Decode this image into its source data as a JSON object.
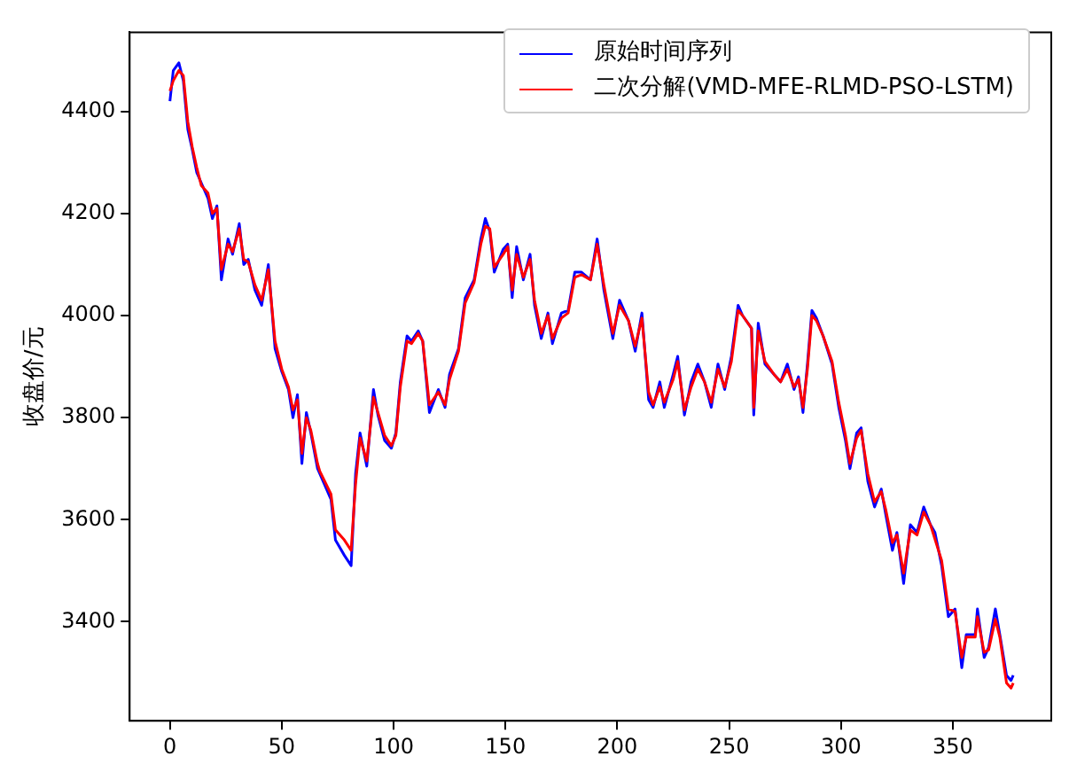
{
  "chart_data": {
    "type": "line",
    "ylabel": "收盘价/元",
    "xlim": [
      -18,
      394
    ],
    "ylim": [
      3206,
      4555
    ],
    "xticks": [
      0,
      50,
      100,
      150,
      200,
      250,
      300,
      350
    ],
    "yticks": [
      3400,
      3600,
      3800,
      4000,
      4200,
      4400
    ],
    "grid": false,
    "legend": "top right",
    "marker": "none",
    "line_style": "solid",
    "x": [
      0,
      1.5,
      4,
      6,
      8,
      10,
      12,
      14,
      17,
      19,
      21,
      23,
      26,
      28,
      31,
      33,
      35,
      38,
      41,
      44,
      47,
      50,
      53,
      55,
      57,
      59,
      61,
      63,
      66,
      67,
      72,
      74,
      78,
      81,
      83,
      85,
      88,
      91,
      93,
      96,
      99,
      101,
      103,
      106,
      108,
      111,
      113,
      116,
      120,
      123,
      125,
      129,
      132,
      136,
      139,
      141,
      143,
      145,
      149,
      151,
      153,
      155,
      158,
      161,
      163,
      166,
      169,
      171,
      175,
      178,
      181,
      184,
      188,
      191,
      194,
      198,
      201,
      205,
      208,
      211,
      214,
      216,
      219,
      221,
      225,
      227,
      230,
      233,
      236,
      239,
      242,
      245,
      248,
      251,
      254,
      256,
      260,
      261,
      263,
      266,
      270,
      273,
      276,
      279,
      281,
      283,
      285,
      287,
      289,
      292,
      296,
      299,
      302,
      304,
      307,
      309,
      312,
      315,
      318,
      320,
      323,
      325,
      328,
      331,
      334,
      337,
      340,
      342,
      345,
      348,
      351,
      354,
      356,
      360,
      361,
      364,
      366,
      369,
      371,
      374,
      376,
      377
    ],
    "series": [
      {
        "name": "原始时间序列",
        "color": "#0000ff",
        "values": [
          4420,
          4480,
          4495,
          4460,
          4365,
          4325,
          4280,
          4260,
          4230,
          4190,
          4215,
          4070,
          4150,
          4120,
          4180,
          4100,
          4110,
          4050,
          4020,
          4100,
          3935,
          3890,
          3855,
          3800,
          3845,
          3710,
          3810,
          3770,
          3700,
          3690,
          3640,
          3560,
          3530,
          3510,
          3690,
          3770,
          3705,
          3855,
          3805,
          3755,
          3740,
          3770,
          3870,
          3960,
          3950,
          3970,
          3950,
          3810,
          3855,
          3820,
          3885,
          3935,
          4035,
          4070,
          4150,
          4190,
          4165,
          4085,
          4130,
          4140,
          4035,
          4135,
          4070,
          4120,
          4020,
          3955,
          4005,
          3945,
          4005,
          4010,
          4085,
          4085,
          4070,
          4150,
          4050,
          3955,
          4030,
          3990,
          3930,
          4005,
          3835,
          3820,
          3870,
          3820,
          3885,
          3920,
          3805,
          3870,
          3905,
          3870,
          3820,
          3905,
          3855,
          3920,
          4020,
          4000,
          3975,
          3805,
          3985,
          3905,
          3885,
          3870,
          3905,
          3855,
          3880,
          3810,
          3905,
          4010,
          3995,
          3960,
          3905,
          3820,
          3755,
          3700,
          3770,
          3780,
          3675,
          3625,
          3660,
          3610,
          3540,
          3575,
          3475,
          3590,
          3575,
          3625,
          3590,
          3575,
          3510,
          3410,
          3425,
          3310,
          3375,
          3375,
          3425,
          3330,
          3350,
          3425,
          3375,
          3295,
          3285,
          3295
        ]
      },
      {
        "name": "二次分解(VMD-MFE-RLMD-PSO-LSTM)",
        "color": "#ff0000",
        "values": [
          4440,
          4460,
          4480,
          4470,
          4380,
          4330,
          4290,
          4255,
          4240,
          4200,
          4210,
          4090,
          4140,
          4125,
          4170,
          4110,
          4105,
          4060,
          4030,
          4090,
          3950,
          3895,
          3860,
          3815,
          3835,
          3730,
          3800,
          3775,
          3710,
          3695,
          3650,
          3580,
          3560,
          3540,
          3670,
          3760,
          3715,
          3840,
          3810,
          3765,
          3745,
          3765,
          3860,
          3950,
          3945,
          3965,
          3950,
          3825,
          3850,
          3825,
          3875,
          3930,
          4025,
          4065,
          4140,
          4175,
          4170,
          4095,
          4120,
          4135,
          4050,
          4120,
          4075,
          4110,
          4030,
          3965,
          4000,
          3955,
          3995,
          4005,
          4075,
          4080,
          4070,
          4140,
          4060,
          3965,
          4020,
          3990,
          3940,
          3995,
          3850,
          3825,
          3860,
          3830,
          3875,
          3910,
          3815,
          3860,
          3895,
          3870,
          3830,
          3895,
          3860,
          3910,
          4010,
          4000,
          3975,
          3820,
          3970,
          3910,
          3885,
          3870,
          3895,
          3860,
          3875,
          3820,
          3895,
          4000,
          3990,
          3960,
          3910,
          3830,
          3765,
          3710,
          3760,
          3775,
          3690,
          3635,
          3655,
          3620,
          3555,
          3570,
          3495,
          3580,
          3570,
          3615,
          3590,
          3562,
          3520,
          3425,
          3420,
          3330,
          3370,
          3370,
          3410,
          3340,
          3345,
          3405,
          3370,
          3280,
          3270,
          3280
        ]
      }
    ]
  }
}
